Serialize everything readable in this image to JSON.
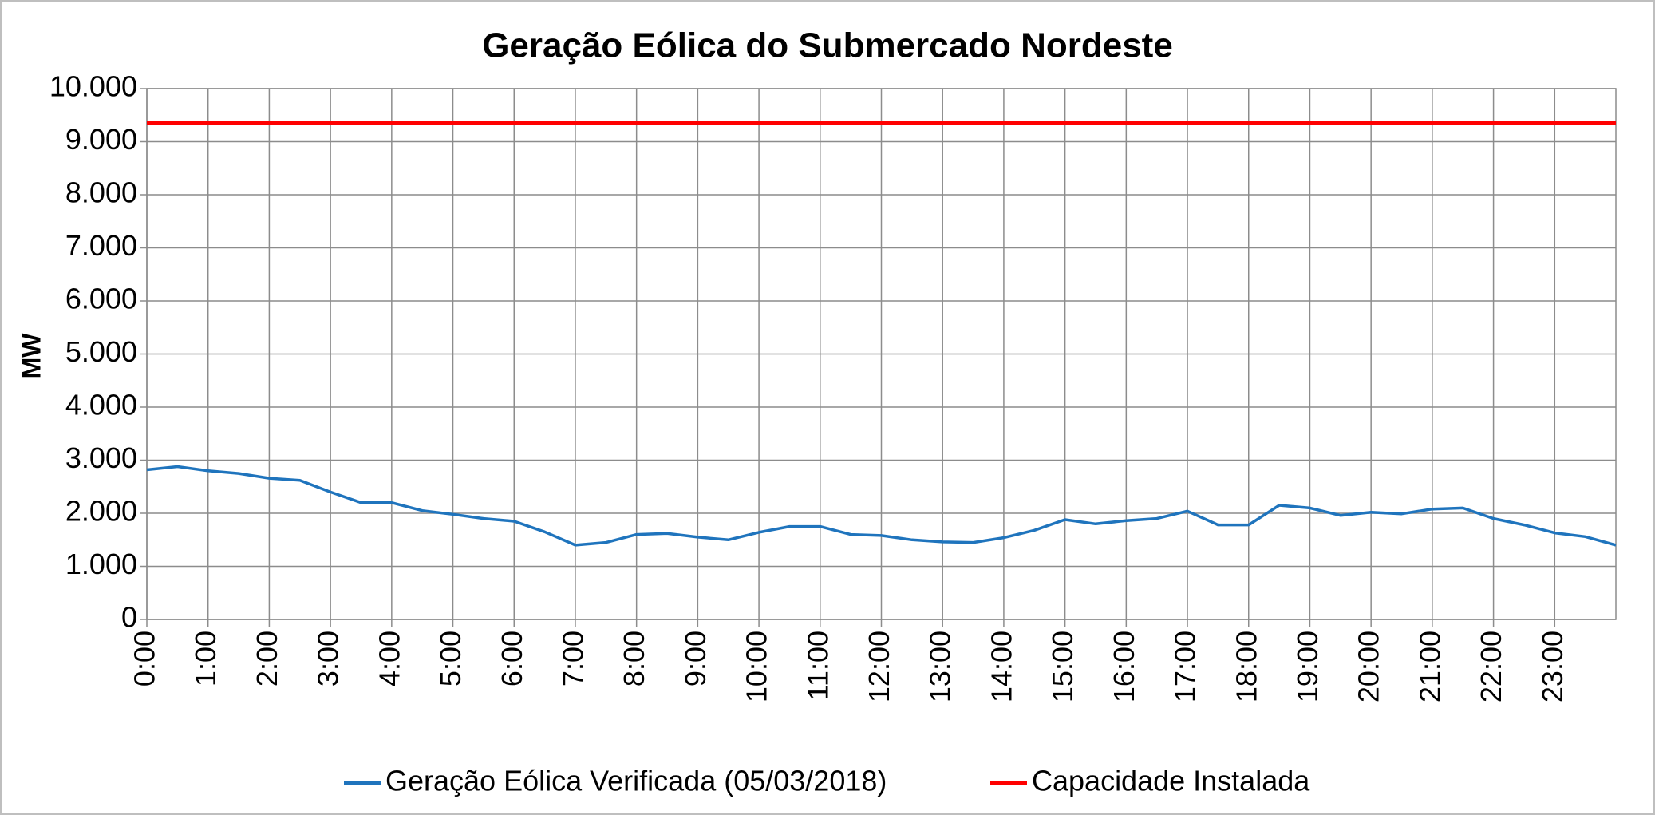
{
  "chart_data": {
    "type": "line",
    "title": "Geração Eólica do Submercado Nordeste",
    "y_label": "MW",
    "categories": [
      "0:00",
      null,
      "1:00",
      null,
      "2:00",
      null,
      "3:00",
      null,
      "4:00",
      null,
      "5:00",
      null,
      "6:00",
      null,
      "7:00",
      null,
      "8:00",
      null,
      "9:00",
      null,
      "10:00",
      null,
      "11:00",
      null,
      "12:00",
      null,
      "13:00",
      null,
      "14:00",
      null,
      "15:00",
      null,
      "16:00",
      null,
      "17:00",
      null,
      "18:00",
      null,
      "19:00",
      null,
      "20:00",
      null,
      "21:00",
      null,
      "22:00",
      null,
      "23:00",
      null,
      null
    ],
    "series": [
      {
        "name": "Geração Eólica Verificada (05/03/2018)",
        "color": "#1f74bd",
        "values": [
          2820,
          2880,
          2800,
          2750,
          2660,
          2620,
          2400,
          2200,
          2200,
          2050,
          1980,
          1900,
          1850,
          1650,
          1400,
          1450,
          1600,
          1620,
          1550,
          1500,
          1640,
          1750,
          1750,
          1600,
          1580,
          1500,
          1460,
          1450,
          1540,
          1680,
          1880,
          1800,
          1860,
          1900,
          2040,
          1780,
          1780,
          2150,
          2100,
          1960,
          2020,
          1990,
          2080,
          2100,
          1900,
          1780,
          1630,
          1560,
          1400
        ]
      },
      {
        "name": "Capacidade Instalada",
        "color": "#ff0000",
        "values": [
          9350,
          9350,
          9350,
          9350,
          9350,
          9350,
          9350,
          9350,
          9350,
          9350,
          9350,
          9350,
          9350,
          9350,
          9350,
          9350,
          9350,
          9350,
          9350,
          9350,
          9350,
          9350,
          9350,
          9350,
          9350,
          9350,
          9350,
          9350,
          9350,
          9350,
          9350,
          9350,
          9350,
          9350,
          9350,
          9350,
          9350,
          9350,
          9350,
          9350,
          9350,
          9350,
          9350,
          9350,
          9350,
          9350,
          9350,
          9350,
          9350
        ]
      }
    ],
    "ylim": [
      0,
      10000
    ],
    "yticks": [
      0,
      {
        "value": 1000,
        "label": "1.000"
      },
      {
        "value": 2000,
        "label": "2.000"
      },
      {
        "value": 3000,
        "label": "3.000"
      },
      {
        "value": 4000,
        "label": "4.000"
      },
      {
        "value": 5000,
        "label": "5.000"
      },
      {
        "value": 6000,
        "label": "6.000"
      },
      {
        "value": 7000,
        "label": "7.000"
      },
      {
        "value": 8000,
        "label": "8.000"
      },
      {
        "value": 9000,
        "label": "9.000"
      },
      {
        "value": 10000,
        "label": "10.000"
      }
    ],
    "grid": true,
    "legend": "bottom"
  }
}
